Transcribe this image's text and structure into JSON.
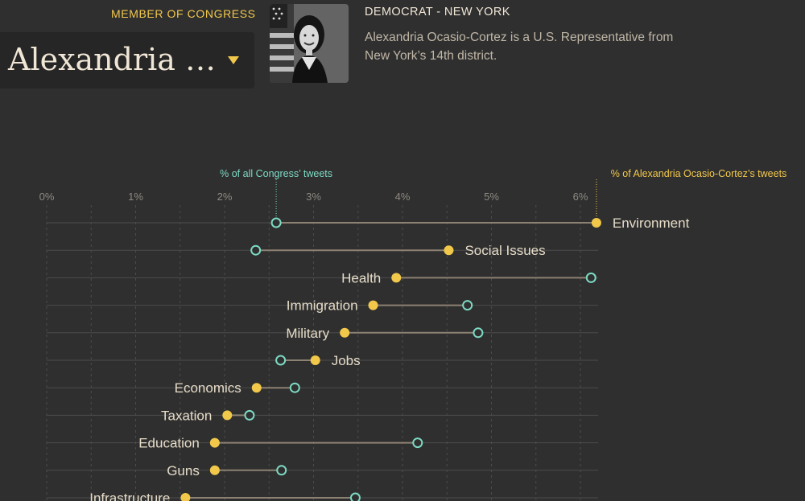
{
  "header": {
    "member_label": "MEMBER OF CONGRESS",
    "selected_member": "Alexandria …",
    "party_state": "DEMOCRAT - NEW YORK",
    "bio": "Alexandria Ocasio-Cortez is a U.S. Representative from New York’s 14th district."
  },
  "colors": {
    "background": "#2f2f2f",
    "member": "#f2c84b",
    "congress": "#7ddac3",
    "connector": "#8c8172",
    "grid": "#4c4c4c"
  },
  "chart_data": {
    "type": "dot-plot",
    "xlim": [
      0,
      6.2
    ],
    "x_ticks": [
      "0%",
      "1%",
      "2%",
      "3%",
      "4%",
      "5%",
      "6%"
    ],
    "x_tick_values": [
      0,
      1,
      2,
      3,
      4,
      5,
      6
    ],
    "legend_congress": "% of all Congress’ tweets",
    "legend_member": "% of Alexandria Ocasio-Cortez’s tweets",
    "congress_average": 2.58,
    "member_maximum": 6.18,
    "categories": [
      "Environment",
      "Social Issues",
      "Health",
      "Immigration",
      "Military",
      "Jobs",
      "Economics",
      "Taxation",
      "Education",
      "Guns",
      "Infrastructure"
    ],
    "series": [
      {
        "name": "% of Alexandria Ocasio-Cortez’s tweets",
        "values": [
          6.18,
          4.52,
          3.93,
          3.67,
          3.35,
          3.02,
          2.36,
          2.03,
          1.89,
          1.89,
          1.56
        ]
      },
      {
        "name": "% of all Congress’ tweets",
        "values": [
          2.58,
          2.35,
          6.12,
          4.73,
          4.85,
          2.63,
          2.79,
          2.28,
          4.17,
          2.64,
          3.47
        ]
      }
    ]
  }
}
